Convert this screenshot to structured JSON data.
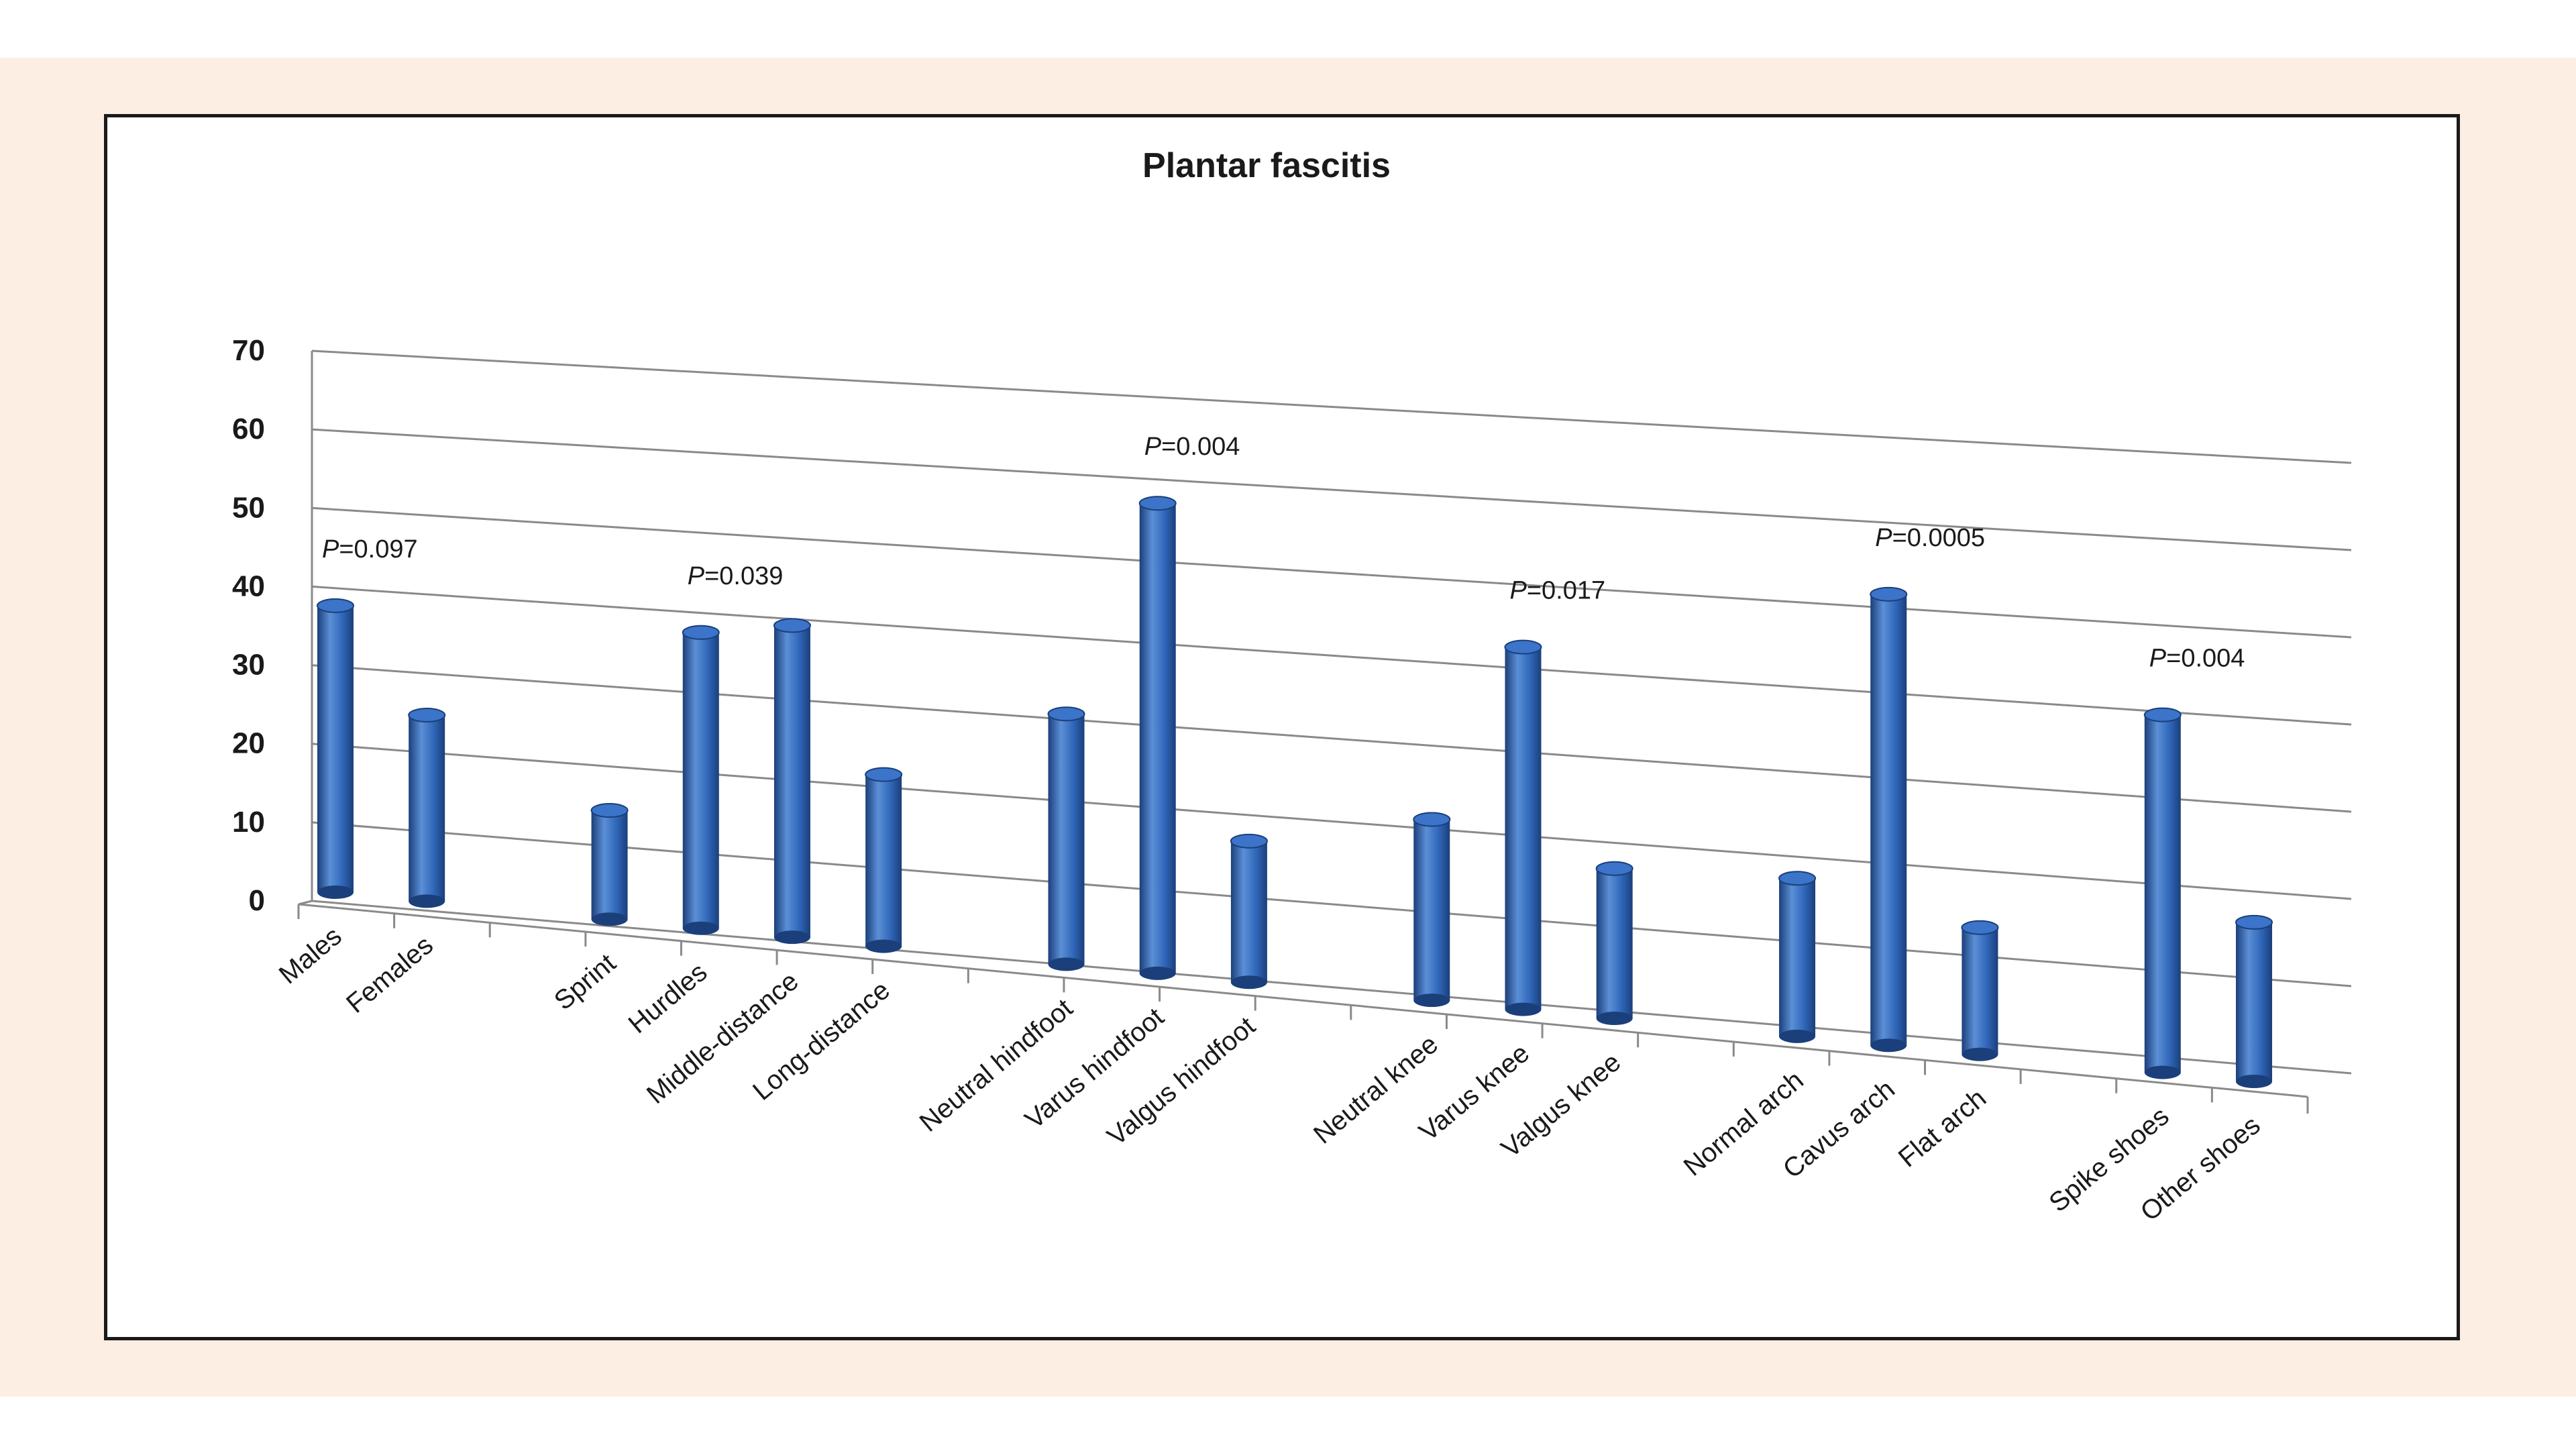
{
  "colors": {
    "page_band": "#fdeee4",
    "bar_light": "#5b8fd6",
    "bar_mid": "#2f66b8",
    "bar_dark": "#1b3f7a",
    "grid": "#8a8a8a"
  },
  "chart_data": {
    "type": "bar",
    "title": "Plantar fascitis",
    "xlabel": "",
    "ylabel": "",
    "ylim": [
      0,
      70
    ],
    "yticks": [
      0,
      10,
      20,
      30,
      40,
      50,
      60,
      70
    ],
    "grid": true,
    "style": "3d-cylinder",
    "categories": [
      "Males",
      "Females",
      "Sprint",
      "Hurdles",
      "Middle-distance",
      "Long-distance",
      "Neutral hindfoot",
      "Varus hindfoot",
      "Valgus hindfoot",
      "Neutral knee",
      "Varus knee",
      "Valgus knee",
      "Normal arch",
      "Cavus arch",
      "Flat arch",
      "Spike shoes",
      "Other shoes"
    ],
    "values": [
      37,
      24,
      14,
      38,
      40,
      22,
      32,
      60,
      18,
      23,
      46,
      19,
      20,
      57,
      16,
      45,
      20
    ],
    "annotations": [
      {
        "prefix": "P",
        "text": "=0.097",
        "category": "Males"
      },
      {
        "prefix": "P",
        "text": "=0.039",
        "category": "Hurdles"
      },
      {
        "prefix": "P",
        "text": "=0.004",
        "category": "Varus hindfoot"
      },
      {
        "prefix": "P",
        "text": "=0.017",
        "category": "Varus knee"
      },
      {
        "prefix": "P",
        "text": "=0.0005",
        "category": "Cavus arch"
      },
      {
        "prefix": "P",
        "text": "=0.004",
        "category": "Spike shoes"
      }
    ]
  }
}
